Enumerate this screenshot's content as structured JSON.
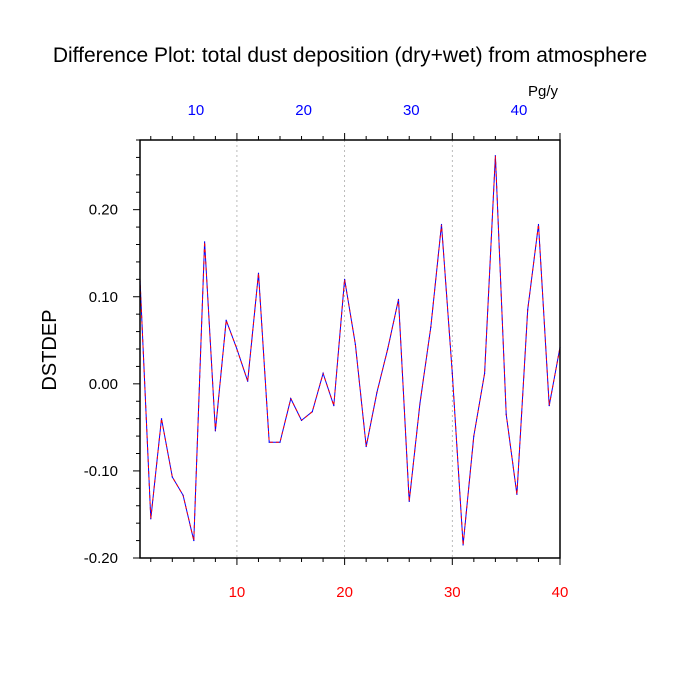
{
  "chart_data": {
    "type": "line",
    "title": "Difference Plot: total dust deposition (dry+wet) from atmosphere",
    "ylabel": "DSTDEP",
    "unit_label": "Pg/y",
    "xlim": [
      1,
      40
    ],
    "ylim": [
      -0.2,
      0.28
    ],
    "grid": "vertical dashed at x ticks",
    "bottom_axis": {
      "ticks": [
        10,
        20,
        30,
        40
      ],
      "tick_labels": [
        "10",
        "20",
        "30",
        "40"
      ],
      "color": "#ff0000"
    },
    "top_axis": {
      "ticks": [
        10,
        20,
        30,
        40
      ],
      "tick_labels": [
        "10",
        "20",
        "30",
        "40"
      ],
      "color": "#0000ff"
    },
    "y_ticks": [
      -0.2,
      -0.1,
      0.0,
      0.1,
      0.2
    ],
    "y_tick_labels": [
      "-0.20",
      "-0.10",
      "0.00",
      "0.10",
      "0.20"
    ],
    "x": [
      1,
      2,
      3,
      4,
      5,
      6,
      7,
      8,
      9,
      10,
      11,
      12,
      13,
      14,
      15,
      16,
      17,
      18,
      19,
      20,
      21,
      22,
      23,
      24,
      25,
      26,
      27,
      28,
      29,
      30,
      31,
      32,
      33,
      34,
      35,
      36,
      37,
      38,
      39,
      40
    ],
    "series": [
      {
        "color": "#0000ff",
        "overlay_color": "#ff0000",
        "values": [
          0.12,
          -0.155,
          -0.04,
          -0.107,
          -0.128,
          -0.18,
          0.163,
          -0.054,
          0.073,
          0.04,
          0.003,
          0.127,
          -0.067,
          -0.067,
          -0.017,
          -0.042,
          -0.032,
          0.012,
          -0.025,
          0.12,
          0.045,
          -0.072,
          -0.01,
          0.04,
          0.097,
          -0.135,
          -0.022,
          0.065,
          0.183,
          0.012,
          -0.185,
          -0.06,
          0.012,
          0.262,
          -0.035,
          -0.127,
          0.085,
          0.183,
          -0.025,
          0.042
        ]
      }
    ]
  }
}
